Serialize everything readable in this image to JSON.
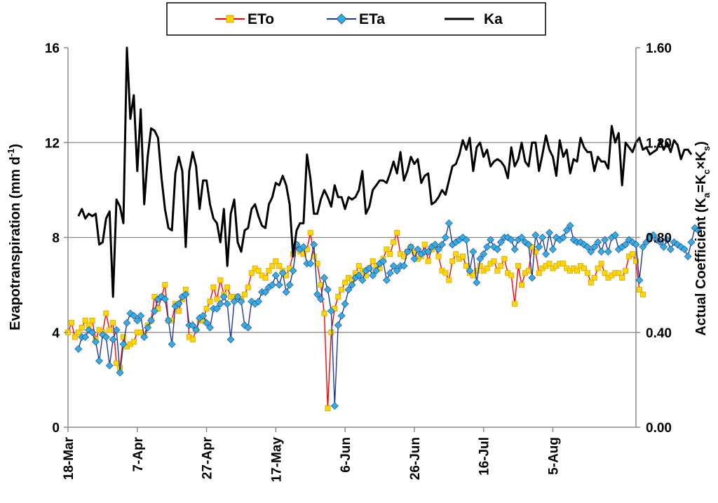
{
  "chart_data": {
    "type": "line",
    "x_tick_labels": [
      "18-Mar",
      "7-Apr",
      "27-Apr",
      "17-May",
      "6-Jun",
      "26-Jun",
      "16-Jul",
      "5-Aug"
    ],
    "left_axis": {
      "ylim": [
        0,
        16
      ],
      "ticks": [
        "0",
        "4",
        "8",
        "12",
        "16"
      ]
    },
    "right_axis": {
      "ylim": [
        0.0,
        1.6
      ],
      "ticks": [
        "0.00",
        "0.40",
        "0.80",
        "1.20",
        "1.60"
      ]
    },
    "ylabel_left": {
      "main": "Evapotranspiration (mm d",
      "sup": "-1",
      "tail": ")"
    },
    "ylabel_right": {
      "main": "Actual  Coefficient  (K",
      "sub_a": "a",
      "eq": "=K",
      "sub_c": "c",
      "times": "×K",
      "sub_s": "s",
      "tail": ")"
    },
    "grid": "horizontal",
    "legend": {
      "placement": "top-center",
      "items": [
        "ETo",
        "ETa",
        "Ka"
      ]
    },
    "series": [
      {
        "name": "ETo",
        "axis": "left",
        "color": "#ff0000",
        "marker_fill": "#ffd700",
        "marker": "square",
        "day_start": 0,
        "values": [
          4.0,
          4.4,
          3.8,
          4.0,
          4.2,
          4.5,
          4.3,
          4.5,
          3.7,
          4.1,
          4.0,
          4.8,
          4.1,
          4.4,
          2.7,
          2.5,
          3.8,
          3.4,
          3.5,
          3.6,
          4.0,
          4.0,
          3.9,
          4.3,
          4.5,
          5.5,
          5.0,
          5.5,
          6.0,
          4.5,
          4.5,
          5.2,
          4.9,
          5.4,
          5.8,
          3.8,
          3.7,
          4.1,
          4.5,
          4.5,
          5.0,
          5.3,
          5.9,
          5.4,
          6.2,
          5.6,
          5.9,
          5.5,
          5.5,
          5.5,
          5.4,
          5.6,
          5.9,
          6.5,
          6.7,
          6.6,
          6.4,
          6.3,
          6.6,
          6.8,
          7.0,
          6.8,
          6.6,
          6.4,
          6.7,
          7.3,
          7.7,
          7.4,
          7.3,
          7.5,
          8.2,
          7.2,
          6.9,
          6.0,
          4.8,
          0.8,
          4.0,
          5.0,
          5.5,
          5.8,
          6.1,
          6.3,
          6.2,
          6.5,
          6.8,
          6.6,
          6.4,
          6.7,
          7.0,
          6.8,
          6.7,
          7.1,
          7.5,
          7.3,
          7.8,
          8.2,
          7.3,
          7.2,
          7.4,
          7.6,
          7.4,
          7.1,
          7.2,
          7.7,
          7.0,
          7.5,
          7.6,
          7.2,
          6.6,
          6.5,
          6.2,
          7.0,
          7.3,
          7.1,
          7.2,
          6.8,
          6.5,
          6.4,
          6.6,
          6.8,
          6.6,
          6.7,
          6.9,
          7.0,
          6.6,
          6.8,
          7.1,
          6.5,
          6.4,
          5.2,
          6.8,
          6.0,
          6.5,
          6.6,
          7.6,
          7.4,
          6.5,
          6.7,
          6.8,
          6.9,
          6.7,
          6.8,
          6.9,
          6.9,
          6.7,
          6.6,
          6.7,
          6.6,
          6.8,
          6.7,
          6.5,
          6.1,
          6.3,
          6.7,
          6.9,
          6.5,
          6.3,
          6.4,
          6.5,
          6.5,
          6.3,
          6.6,
          7.2,
          7.3,
          7.0,
          5.8,
          5.6
        ]
      },
      {
        "name": "ETa",
        "axis": "left",
        "color": "#1f3a93",
        "marker_fill": "#33aee0",
        "marker": "diamond",
        "day_start": 3,
        "values": [
          3.3,
          3.8,
          3.8,
          4.1,
          4.0,
          3.6,
          2.8,
          3.9,
          3.8,
          2.6,
          3.7,
          4.1,
          2.3,
          3.5,
          4.4,
          4.8,
          4.7,
          4.5,
          4.7,
          3.8,
          4.2,
          4.5,
          4.9,
          5.4,
          5.5,
          5.4,
          4.5,
          3.5,
          5.1,
          5.2,
          5.5,
          5.6,
          4.3,
          4.3,
          4.1,
          4.6,
          4.7,
          4.4,
          4.2,
          5.0,
          5.0,
          5.2,
          5.5,
          5.2,
          3.7,
          5.3,
          5.5,
          5.3,
          4.3,
          4.2,
          5.3,
          5.2,
          5.3,
          5.7,
          5.7,
          5.9,
          6.0,
          6.4,
          6.0,
          6.5,
          5.7,
          6.0,
          6.6,
          7.7,
          7.5,
          7.6,
          6.9,
          6.9,
          7.7,
          5.6,
          5.4,
          6.3,
          5.8,
          4.9,
          0.9,
          4.3,
          4.7,
          5.2,
          5.8,
          6.0,
          6.3,
          6.4,
          6.2,
          6.6,
          6.7,
          6.4,
          6.6,
          6.9,
          7.0,
          6.2,
          6.5,
          6.8,
          6.6,
          6.8,
          6.8,
          7.4,
          7.6,
          7.1,
          7.5,
          7.3,
          7.4,
          7.4,
          7.6,
          7.7,
          7.5,
          7.7,
          8.0,
          8.6,
          7.7,
          7.8,
          7.9,
          8.0,
          7.9,
          6.6,
          7.4,
          6.1,
          7.1,
          7.3,
          7.6,
          7.9,
          7.6,
          7.5,
          7.8,
          8.0,
          8.0,
          7.9,
          7.5,
          7.9,
          8.0,
          7.8,
          7.7,
          6.3,
          8.1,
          7.6,
          8.0,
          7.3,
          8.2,
          7.5,
          8.0,
          7.9,
          8.0,
          8.3,
          8.5,
          7.9,
          7.8,
          7.8,
          7.7,
          7.6,
          7.4,
          7.6,
          7.8,
          7.4,
          7.9,
          7.4,
          8.0,
          8.1,
          7.5,
          7.6,
          7.7,
          7.9,
          7.8,
          7.7,
          6.2,
          7.6,
          7.8,
          8.0,
          8.1,
          7.9,
          7.8,
          7.6,
          7.9,
          7.5,
          7.8,
          7.7,
          7.6,
          7.5,
          7.2,
          7.8,
          8.4,
          8.3
        ]
      },
      {
        "name": "Ka",
        "axis": "right",
        "color": "#000000",
        "marker": "none",
        "day_start": 3,
        "values": [
          0.89,
          0.92,
          0.88,
          0.9,
          0.89,
          0.9,
          0.77,
          0.78,
          0.88,
          0.91,
          0.55,
          0.96,
          0.93,
          0.86,
          1.6,
          1.3,
          1.4,
          1.08,
          1.34,
          0.94,
          1.14,
          1.26,
          1.25,
          1.22,
          1.05,
          0.92,
          0.84,
          0.83,
          1.07,
          1.14,
          1.08,
          0.76,
          1.08,
          1.16,
          1.1,
          0.92,
          1.04,
          1.04,
          0.94,
          0.88,
          0.86,
          0.78,
          0.92,
          0.68,
          0.9,
          0.96,
          0.78,
          0.74,
          0.83,
          0.84,
          0.92,
          0.94,
          0.89,
          0.85,
          0.84,
          0.94,
          0.97,
          1.03,
          1.02,
          1.06,
          1.02,
          0.94,
          0.72,
          0.83,
          0.86,
          0.86,
          1.15,
          1.05,
          0.9,
          0.9,
          0.96,
          1.0,
          0.97,
          0.93,
          1.02,
          0.97,
          0.97,
          0.92,
          0.97,
          0.96,
          0.97,
          1.0,
          1.08,
          0.9,
          0.93,
          1.0,
          1.02,
          1.04,
          1.04,
          1.03,
          1.07,
          1.12,
          1.07,
          1.16,
          1.04,
          1.08,
          1.14,
          1.11,
          1.13,
          1.03,
          1.06,
          1.07,
          0.94,
          0.95,
          0.97,
          1.0,
          0.98,
          1.04,
          1.1,
          1.11,
          1.15,
          1.21,
          1.17,
          1.22,
          1.08,
          1.18,
          1.2,
          1.14,
          1.17,
          1.1,
          1.12,
          1.13,
          1.12,
          1.1,
          1.05,
          1.18,
          1.1,
          1.13,
          1.2,
          1.12,
          1.1,
          1.2,
          1.2,
          1.08,
          1.15,
          1.23,
          1.17,
          1.14,
          1.06,
          1.21,
          1.14,
          1.17,
          1.07,
          1.13,
          1.12,
          1.22,
          1.18,
          1.16,
          1.16,
          1.08,
          1.14,
          1.12,
          1.12,
          1.09,
          1.27,
          1.2,
          1.24,
          1.02,
          1.2,
          1.18,
          1.16,
          1.2,
          1.22,
          1.17,
          1.18,
          1.15,
          1.16,
          1.17,
          1.21,
          1.17,
          1.2,
          1.16,
          1.21,
          1.19,
          1.13,
          1.17,
          1.17,
          1.15
        ]
      }
    ]
  }
}
